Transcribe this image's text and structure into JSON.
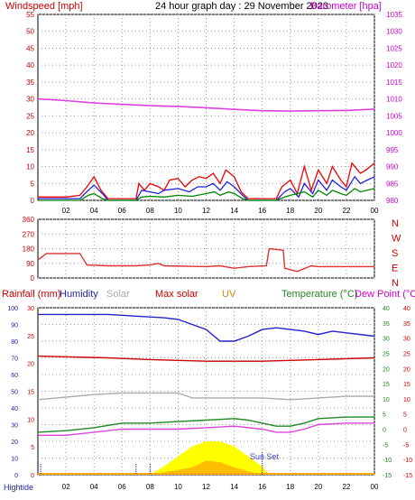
{
  "chart_data": [
    {
      "type": "line",
      "title": "24 hour graph day : 29 November 2023",
      "ylabel_left": "Windspeed [mph]",
      "ylabel_right": "Barometer [hpa]",
      "x_ticks": [
        "02",
        "04",
        "06",
        "08",
        "10",
        "12",
        "14",
        "16",
        "18",
        "20",
        "22",
        "00"
      ],
      "xlim_hours": [
        0,
        24
      ],
      "ylim_left": [
        0,
        55
      ],
      "yticks_left": [
        "0",
        "5",
        "10",
        "15",
        "20",
        "25",
        "30",
        "35",
        "40",
        "45",
        "50",
        "55"
      ],
      "ylim_right": [
        980,
        1035
      ],
      "yticks_right": [
        "980",
        "985",
        "990",
        "995",
        "1000",
        "1005",
        "1010",
        "1015",
        "1020",
        "1025",
        "1030",
        "1035"
      ],
      "grid": true,
      "series": [
        {
          "axis": "right",
          "color": "#e040e0",
          "points": [
            [
              0,
              1010
            ],
            [
              2,
              1009.5
            ],
            [
              4,
              1008.8
            ],
            [
              6,
              1008.4
            ],
            [
              8,
              1008
            ],
            [
              10,
              1007.8
            ],
            [
              12,
              1007.4
            ],
            [
              14,
              1006.9
            ],
            [
              16,
              1006.5
            ],
            [
              18,
              1006.4
            ],
            [
              20,
              1006.5
            ],
            [
              22,
              1006.6
            ],
            [
              24,
              1007
            ]
          ]
        },
        {
          "axis": "left",
          "color": "#ee0000",
          "points": [
            [
              0,
              1
            ],
            [
              2,
              1
            ],
            [
              3,
              1.5
            ],
            [
              3.5,
              4
            ],
            [
              4,
              7
            ],
            [
              4.5,
              3
            ],
            [
              5,
              0.5
            ],
            [
              7,
              0.5
            ],
            [
              7.2,
              5
            ],
            [
              7.6,
              3
            ],
            [
              8,
              5
            ],
            [
              8.6,
              4
            ],
            [
              9,
              3
            ],
            [
              9.4,
              6
            ],
            [
              10,
              6.5
            ],
            [
              10.5,
              4
            ],
            [
              11,
              6
            ],
            [
              11.5,
              7
            ],
            [
              12,
              6.5
            ],
            [
              12.5,
              8
            ],
            [
              13,
              5
            ],
            [
              13.4,
              9
            ],
            [
              14,
              7
            ],
            [
              14.5,
              2.5
            ],
            [
              15,
              0.5
            ],
            [
              17,
              0.5
            ],
            [
              17.4,
              4
            ],
            [
              18,
              6
            ],
            [
              18.5,
              2
            ],
            [
              19,
              10
            ],
            [
              19.5,
              3
            ],
            [
              20,
              9
            ],
            [
              20.6,
              5
            ],
            [
              21,
              10
            ],
            [
              21.6,
              6
            ],
            [
              22,
              4
            ],
            [
              22.4,
              11
            ],
            [
              23,
              8
            ],
            [
              23.4,
              9
            ],
            [
              24,
              11
            ]
          ]
        },
        {
          "axis": "left",
          "color": "#2020e0",
          "points": [
            [
              0,
              0.5
            ],
            [
              3,
              0.5
            ],
            [
              3.6,
              3
            ],
            [
              4,
              4.5
            ],
            [
              4.6,
              2
            ],
            [
              5,
              0
            ],
            [
              7,
              0
            ],
            [
              7.4,
              3
            ],
            [
              8,
              2.5
            ],
            [
              8.6,
              2
            ],
            [
              9,
              3
            ],
            [
              10,
              3.5
            ],
            [
              10.8,
              2.5
            ],
            [
              11.4,
              4
            ],
            [
              12,
              4
            ],
            [
              12.5,
              5
            ],
            [
              13,
              3
            ],
            [
              13.5,
              5.5
            ],
            [
              14,
              4
            ],
            [
              14.6,
              1.5
            ],
            [
              15,
              0
            ],
            [
              17,
              0
            ],
            [
              17.6,
              2.5
            ],
            [
              18,
              3.5
            ],
            [
              18.6,
              1
            ],
            [
              19,
              5
            ],
            [
              19.6,
              2
            ],
            [
              20,
              6
            ],
            [
              20.6,
              3
            ],
            [
              21,
              6
            ],
            [
              21.6,
              4
            ],
            [
              22,
              3
            ],
            [
              22.6,
              7
            ],
            [
              23,
              5
            ],
            [
              23.5,
              6
            ],
            [
              24,
              7
            ]
          ]
        },
        {
          "axis": "left",
          "color": "#008800",
          "points": [
            [
              0,
              0
            ],
            [
              3,
              0
            ],
            [
              3.6,
              1.5
            ],
            [
              4,
              2
            ],
            [
              4.6,
              0.5
            ],
            [
              5,
              0
            ],
            [
              7,
              0
            ],
            [
              7.4,
              1
            ],
            [
              8,
              1.2
            ],
            [
              9,
              1
            ],
            [
              10,
              1.5
            ],
            [
              11,
              1.2
            ],
            [
              12,
              2
            ],
            [
              12.6,
              2.5
            ],
            [
              13,
              1.5
            ],
            [
              13.6,
              2.5
            ],
            [
              14,
              2
            ],
            [
              14.6,
              0.5
            ],
            [
              15,
              0
            ],
            [
              17,
              0
            ],
            [
              17.6,
              1
            ],
            [
              18,
              1.5
            ],
            [
              19,
              2.5
            ],
            [
              19.6,
              1
            ],
            [
              20,
              3
            ],
            [
              20.6,
              1.5
            ],
            [
              21,
              3
            ],
            [
              21.6,
              2
            ],
            [
              22,
              1.5
            ],
            [
              22.6,
              3.5
            ],
            [
              23,
              2.5
            ],
            [
              24,
              3.5
            ]
          ]
        }
      ]
    },
    {
      "type": "line",
      "ylabel_right": [
        "N",
        "W",
        "S",
        "E",
        "N"
      ],
      "ylim": [
        0,
        360
      ],
      "yticks_left": [
        "0",
        "90",
        "180",
        "270",
        "360"
      ],
      "grid": true,
      "series": [
        {
          "color": "#dd3333",
          "points": [
            [
              0,
              110
            ],
            [
              0.6,
              150
            ],
            [
              3,
              150
            ],
            [
              3.5,
              80
            ],
            [
              5,
              75
            ],
            [
              7,
              75
            ],
            [
              8,
              80
            ],
            [
              8.6,
              90
            ],
            [
              9,
              75
            ],
            [
              12,
              70
            ],
            [
              13,
              75
            ],
            [
              14,
              60
            ],
            [
              15,
              70
            ],
            [
              16.3,
              75
            ],
            [
              16.5,
              180
            ],
            [
              17.5,
              170
            ],
            [
              17.6,
              60
            ],
            [
              18.5,
              40
            ],
            [
              19.5,
              75
            ],
            [
              20,
              70
            ],
            [
              22,
              70
            ],
            [
              24,
              70
            ]
          ]
        }
      ]
    },
    {
      "type": "line",
      "legend": [
        "Rainfall (mm)",
        "Humidity",
        "Solar",
        "Max solar",
        "UV",
        "Temperature (°C)",
        "Dew Point (°C)"
      ],
      "yticks_humidity": [
        "0",
        "10",
        "20",
        "30",
        "40",
        "50",
        "60",
        "70",
        "80",
        "90",
        "100"
      ],
      "yticks_rain": [
        "0",
        "5",
        "10",
        "15",
        "20",
        "25",
        "30"
      ],
      "yticks_temp": [
        "-15",
        "-10",
        "-5",
        "0",
        "5",
        "10",
        "15",
        "20",
        "25",
        "30",
        "35",
        "40"
      ],
      "annotations": [
        "Sun Set",
        "Hightide"
      ],
      "series": [
        {
          "name": "Humidity",
          "axis": "humidity",
          "color": "#2222cc",
          "points": [
            [
              0,
              96
            ],
            [
              5,
              96
            ],
            [
              7,
              95
            ],
            [
              9,
              94
            ],
            [
              10,
              93
            ],
            [
              11,
              90
            ],
            [
              12,
              87
            ],
            [
              13,
              80
            ],
            [
              14,
              80
            ],
            [
              15,
              83
            ],
            [
              16,
              87
            ],
            [
              17,
              88
            ],
            [
              18,
              87
            ],
            [
              19,
              86
            ],
            [
              20,
              84
            ],
            [
              21,
              86
            ],
            [
              22,
              85
            ],
            [
              24,
              83
            ]
          ]
        },
        {
          "name": "Solar",
          "axis": "humidity",
          "color": "#aaaaaa",
          "points": [
            [
              0,
              45
            ],
            [
              4,
              48
            ],
            [
              6,
              49
            ],
            [
              8,
              49
            ],
            [
              10,
              49
            ],
            [
              11,
              46
            ],
            [
              13,
              46
            ],
            [
              16,
              46
            ],
            [
              18,
              45
            ],
            [
              20,
              46
            ],
            [
              22,
              47
            ],
            [
              24,
              47
            ]
          ]
        },
        {
          "name": "Max solar",
          "axis": "humidity",
          "color": "#cc0000",
          "points": [
            [
              0,
              71
            ],
            [
              5,
              70
            ],
            [
              8,
              69
            ],
            [
              12,
              68
            ],
            [
              16,
              68
            ],
            [
              20,
              69
            ],
            [
              24,
              70
            ]
          ]
        },
        {
          "name": "Temperature (°C)",
          "axis": "temp",
          "color": "#228822",
          "points": [
            [
              0,
              -1
            ],
            [
              2,
              -0.5
            ],
            [
              4,
              0.5
            ],
            [
              6,
              2
            ],
            [
              8,
              2
            ],
            [
              10,
              2.5
            ],
            [
              12,
              3
            ],
            [
              14,
              3.5
            ],
            [
              15,
              3
            ],
            [
              16,
              2
            ],
            [
              17,
              1
            ],
            [
              18,
              1
            ],
            [
              19,
              2
            ],
            [
              20,
              3.5
            ],
            [
              22,
              4
            ],
            [
              24,
              4
            ]
          ]
        },
        {
          "name": "Dew Point (°C)",
          "axis": "temp",
          "color": "#dd44dd",
          "points": [
            [
              0,
              -2
            ],
            [
              2,
              -2
            ],
            [
              4,
              -1
            ],
            [
              6,
              0
            ],
            [
              8,
              0
            ],
            [
              10,
              0
            ],
            [
              12,
              0.5
            ],
            [
              14,
              1
            ],
            [
              16,
              0
            ],
            [
              17,
              -1
            ],
            [
              18,
              -1
            ],
            [
              19,
              0
            ],
            [
              20,
              1.5
            ],
            [
              22,
              2
            ],
            [
              24,
              2
            ]
          ]
        }
      ],
      "uv": [
        [
          8,
          0
        ],
        [
          9,
          3
        ],
        [
          10,
          6
        ],
        [
          11,
          9
        ],
        [
          11.5,
          13
        ],
        [
          12,
          17
        ],
        [
          12.5,
          16
        ],
        [
          13,
          15
        ],
        [
          13.5,
          12
        ],
        [
          14,
          9
        ],
        [
          15,
          4
        ],
        [
          16,
          0
        ]
      ],
      "solar_fill": [
        [
          8,
          0
        ],
        [
          9,
          5
        ],
        [
          10,
          11
        ],
        [
          11,
          17
        ],
        [
          12,
          20
        ],
        [
          13,
          20
        ],
        [
          14,
          17
        ],
        [
          15,
          11
        ],
        [
          16,
          5
        ],
        [
          16.5,
          0
        ]
      ]
    }
  ]
}
